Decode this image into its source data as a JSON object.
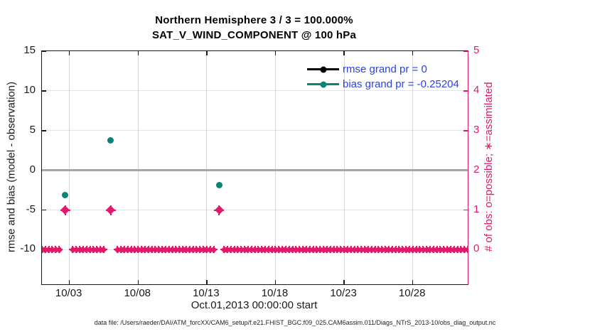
{
  "figure": {
    "background": "#ffffff"
  },
  "title": {
    "line1": "Northern Hemisphere 3 / 3 = 100.000%",
    "line2": "SAT_V_WIND_COMPONENT @ 100 hPa"
  },
  "axes": {
    "xlabel": "Oct.01,2013 00:00:00 start",
    "ylabel_left": "rmse and bias (model - observation)",
    "ylabel_right": "# of obs: o=possible; ∗=assimilated",
    "x_ticks": [
      {
        "day": 3,
        "label": "10/03"
      },
      {
        "day": 8,
        "label": "10/08"
      },
      {
        "day": 13,
        "label": "10/13"
      },
      {
        "day": 18,
        "label": "10/18"
      },
      {
        "day": 23,
        "label": "10/23"
      },
      {
        "day": 28,
        "label": "10/28"
      }
    ],
    "y_left_ticks": [
      15,
      10,
      5,
      0,
      -5,
      -10
    ],
    "y_right_ticks": [
      5,
      4,
      3,
      2,
      1,
      0
    ],
    "x_range_days": [
      1,
      32
    ],
    "y_left_range": [
      -14.35,
      15
    ],
    "y_right_range": [
      -0.87,
      5
    ]
  },
  "legend": {
    "items": [
      {
        "label": "rmse grand pr = 0",
        "series": "rmse"
      },
      {
        "label": "bias grand pr = -0.25204",
        "series": "bias"
      }
    ]
  },
  "colors": {
    "rmse": "#000000",
    "bias": "#0d8378",
    "obs": "#e2186b",
    "legend_text": "#2a41ea",
    "zero_line": "#aba6a6",
    "grid_vertical": "#d7d7d7",
    "grid_horizontal": "rgba(226,24,107,0.16)",
    "axis": "#1a1a1a",
    "tick_label_left": "#1a1a1a",
    "tick_label_right": "#e2186b"
  },
  "chart_data": {
    "type": "line",
    "title": "Northern Hemisphere 3 / 3 = 100.000%",
    "subtitle": "SAT_V_WIND_COMPONENT @ 100 hPa",
    "xlabel": "Oct.01,2013 00:00:00 start",
    "ylabel_left": "rmse and bias (model - observation)",
    "ylabel_right": "# of obs: o=possible; ∗=assimilated",
    "x_axis": {
      "unit": "day of October 2013 (Oct 1 = 1)",
      "range": [
        1,
        32
      ],
      "tick_days": [
        3,
        8,
        13,
        18,
        23,
        28
      ],
      "tick_labels": [
        "10/03",
        "10/08",
        "10/13",
        "10/18",
        "10/23",
        "10/28"
      ]
    },
    "left_axis": {
      "range": [
        -14.35,
        15
      ],
      "ticks": [
        15,
        10,
        5,
        0,
        -5,
        -10
      ]
    },
    "right_axis": {
      "range": [
        -0.87,
        5
      ],
      "ticks": [
        5,
        4,
        3,
        2,
        1,
        0
      ]
    },
    "zero_reference_line": 0,
    "grid": true,
    "legend_position": "upper-right-inside",
    "series": [
      {
        "name": "rmse grand pr = 0",
        "axis": "left",
        "marker": "filled-circle",
        "color_key": "rmse",
        "points": []
      },
      {
        "name": "bias grand pr = -0.25204",
        "axis": "left",
        "marker": "filled-circle",
        "color_key": "bias",
        "points": [
          {
            "day": 2.7,
            "value": -3.1
          },
          {
            "day": 6.0,
            "value": 3.8
          },
          {
            "day": 13.9,
            "value": -1.9
          }
        ]
      },
      {
        "name": "# of obs (possible and assimilated)",
        "axis": "right",
        "marker": "asterisk-diamond",
        "color_key": "obs",
        "baseline": {
          "start_day": 1.0,
          "end_day": 32.0,
          "step_days": 0.25,
          "count": 0
        },
        "events": [
          {
            "day": 2.7,
            "count": 1
          },
          {
            "day": 6.0,
            "count": 1
          },
          {
            "day": 13.9,
            "count": 1
          }
        ],
        "gap_half_width_days": 0.3
      }
    ]
  },
  "footer": "data file: /Users/raeder/DAI/ATM_forcXX/CAM6_setup/f.e21.FHIST_BGC.f09_025.CAM6assim.011/Diags_NTrS_2013-10/obs_diag_output.nc"
}
